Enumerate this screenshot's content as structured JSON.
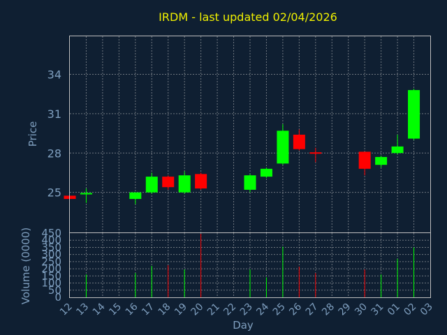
{
  "chart_data": {
    "type": "candlestick",
    "title": "IRDM - last updated 02/04/2026",
    "xlabel": "Day",
    "price_panel": {
      "ylabel": "Price",
      "ylim": [
        21.95,
        36.9
      ],
      "yticks": [
        25,
        28,
        31,
        34
      ],
      "up_color": "#00ff00",
      "down_color": "#ff0000",
      "grid": true
    },
    "volume_panel": {
      "ylabel": "Volume (0000)",
      "ylim": [
        0,
        450
      ],
      "yticks": [
        0,
        50,
        100,
        150,
        200,
        250,
        300,
        350,
        400,
        450
      ],
      "grid": true
    },
    "x_tick_labels": [
      "12",
      "13",
      "14",
      "15",
      "16",
      "17",
      "18",
      "19",
      "20",
      "21",
      "22",
      "23",
      "24",
      "25",
      "26",
      "27",
      "28",
      "29",
      "30",
      "31",
      "01",
      "02",
      "03"
    ],
    "candles": [
      {
        "day": "12",
        "open": 24.75,
        "high": 24.75,
        "low": 24.5,
        "close": 24.5,
        "volume": 0
      },
      {
        "day": "13",
        "open": 24.9,
        "high": 25.3,
        "low": 24.2,
        "close": 24.9,
        "volume": 160
      },
      {
        "day": "16",
        "open": 24.5,
        "high": 25.0,
        "low": 24.1,
        "close": 25.0,
        "volume": 170
      },
      {
        "day": "17",
        "open": 25.0,
        "high": 26.5,
        "low": 24.9,
        "close": 26.2,
        "volume": 220
      },
      {
        "day": "18",
        "open": 26.2,
        "high": 26.3,
        "low": 25.2,
        "close": 25.4,
        "volume": 225
      },
      {
        "day": "19",
        "open": 25.0,
        "high": 26.6,
        "low": 24.9,
        "close": 26.3,
        "volume": 195
      },
      {
        "day": "20",
        "open": 26.4,
        "high": 26.5,
        "low": 25.2,
        "close": 25.3,
        "volume": 445
      },
      {
        "day": "23",
        "open": 25.2,
        "high": 26.4,
        "low": 25.0,
        "close": 26.3,
        "volume": 195
      },
      {
        "day": "24",
        "open": 26.2,
        "high": 26.9,
        "low": 26.1,
        "close": 26.8,
        "volume": 140
      },
      {
        "day": "25",
        "open": 27.2,
        "high": 30.2,
        "low": 27.1,
        "close": 29.7,
        "volume": 355
      },
      {
        "day": "26",
        "open": 29.4,
        "high": 29.8,
        "low": 28.2,
        "close": 28.3,
        "volume": 215
      },
      {
        "day": "27",
        "open": 28.0,
        "high": 28.4,
        "low": 27.3,
        "close": 27.95,
        "volume": 170
      },
      {
        "day": "30",
        "open": 28.1,
        "high": 28.1,
        "low": 26.3,
        "close": 26.8,
        "volume": 195
      },
      {
        "day": "31",
        "open": 27.1,
        "high": 27.8,
        "low": 26.9,
        "close": 27.7,
        "volume": 160
      },
      {
        "day": "01",
        "open": 28.0,
        "high": 29.4,
        "low": 27.9,
        "close": 28.5,
        "volume": 270
      },
      {
        "day": "02",
        "open": 29.1,
        "high": 32.9,
        "low": 29.0,
        "close": 32.8,
        "volume": 350
      }
    ]
  }
}
